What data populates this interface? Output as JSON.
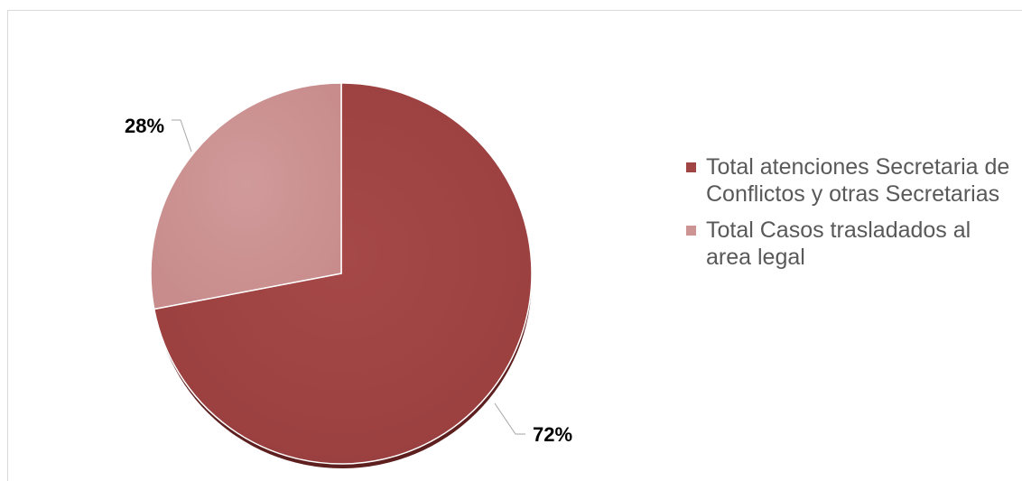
{
  "chart_data": {
    "type": "pie",
    "title": "",
    "categories": [
      "Total atenciones Secretaria de Conflictos y otras Secretarias",
      "Total Casos trasladados al area legal"
    ],
    "values": [
      72,
      28
    ],
    "data_labels": [
      "72%",
      "28%"
    ],
    "colors": [
      "#a04444",
      "#cd9494"
    ],
    "legend_position": "right"
  }
}
